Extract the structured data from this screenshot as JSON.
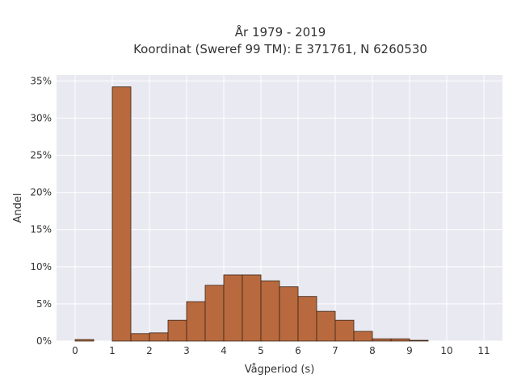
{
  "chart_data": {
    "type": "bar",
    "title_line1": "År 1979 - 2019",
    "title_line2": "Koordinat (Sweref 99 TM): E 371761, N 6260530",
    "xlabel": "Vågperiod (s)",
    "ylabel": "Andel",
    "xlim": [
      -0.5,
      11.5
    ],
    "ylim": [
      0,
      35.8
    ],
    "x_ticks": [
      0,
      1,
      2,
      3,
      4,
      5,
      6,
      7,
      8,
      9,
      10,
      11
    ],
    "y_ticks": [
      0,
      5,
      10,
      15,
      20,
      25,
      30,
      35
    ],
    "y_tick_suffix": "%",
    "bin_width": 0.5,
    "bins": [
      {
        "start": 0.0,
        "value": 0.2
      },
      {
        "start": 0.5,
        "value": 0.0
      },
      {
        "start": 1.0,
        "value": 34.2
      },
      {
        "start": 1.5,
        "value": 1.0
      },
      {
        "start": 2.0,
        "value": 1.1
      },
      {
        "start": 2.5,
        "value": 2.8
      },
      {
        "start": 3.0,
        "value": 5.3
      },
      {
        "start": 3.5,
        "value": 7.5
      },
      {
        "start": 4.0,
        "value": 8.9
      },
      {
        "start": 4.5,
        "value": 8.9
      },
      {
        "start": 5.0,
        "value": 8.1
      },
      {
        "start": 5.5,
        "value": 7.3
      },
      {
        "start": 6.0,
        "value": 6.0
      },
      {
        "start": 6.5,
        "value": 4.0
      },
      {
        "start": 7.0,
        "value": 2.8
      },
      {
        "start": 7.5,
        "value": 1.3
      },
      {
        "start": 8.0,
        "value": 0.3
      },
      {
        "start": 8.5,
        "value": 0.3
      },
      {
        "start": 9.0,
        "value": 0.1
      }
    ],
    "bar_color": "#b86a3e",
    "bar_edge_color": "#3a2417",
    "plot_background": "#e9e9f1",
    "grid": true,
    "grid_color": "#ffffff",
    "legend": "none"
  }
}
